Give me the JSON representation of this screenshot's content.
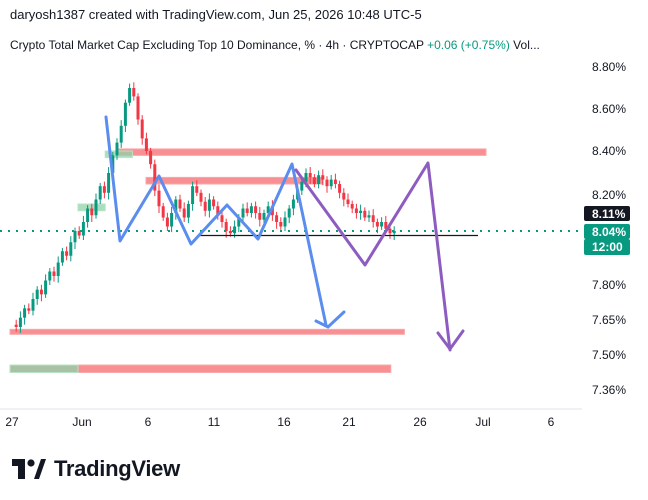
{
  "header": {
    "created_by": "daryosh1387 created with TradingView.com, Jun 25, 2026 10:48 UTC-5",
    "symbol_title": "Crypto Total Market Cap Excluding Top 10 Dominance, % · 4h · CRYPTOCAP",
    "change": "+0.06 (+0.75%)",
    "volume_label": "Vol..."
  },
  "footer": {
    "brand": "TradingView"
  },
  "colors": {
    "up": "#089981",
    "down": "#f23645",
    "zone_red": "#f77c80",
    "zone_green": "#8fd3a8",
    "arrow_blue": "#5b8def",
    "arrow_purple": "#8e5cc0",
    "dotted_level": "#089981",
    "last_price_badge": "#131722",
    "current_badge": "#089981"
  },
  "chart_data": {
    "type": "candlestick",
    "y_axis": {
      "ticks": [
        "8.80%",
        "8.60%",
        "8.40%",
        "8.20%",
        "8.00%",
        "7.80%",
        "7.65%",
        "7.50%",
        "7.36%"
      ],
      "scale": "nonlinear"
    },
    "x_axis": {
      "ticks": [
        "27",
        "Jun",
        "6",
        "11",
        "16",
        "21",
        "26",
        "Jul",
        "6"
      ]
    },
    "price_badges": [
      {
        "value": "8.11%",
        "kind": "last"
      },
      {
        "value": "8.04%",
        "kind": "current"
      },
      {
        "value": "12:00",
        "kind": "countdown"
      }
    ],
    "horizontal_levels": [
      {
        "value": 8.04,
        "style": "dotted"
      },
      {
        "value": 8.02,
        "style": "solid"
      }
    ],
    "zones": [
      {
        "type": "supply",
        "low": 8.38,
        "high": 8.41,
        "start": "Jun 4",
        "end": "Jul 1"
      },
      {
        "type": "supply",
        "low": 8.25,
        "high": 8.28,
        "start": "Jun 6",
        "end": "Jun 19"
      },
      {
        "type": "supply",
        "low": 7.59,
        "high": 7.61,
        "start": "May 27",
        "end": "Jun 25"
      },
      {
        "type": "supply",
        "low": 7.43,
        "high": 7.46,
        "start": "May 27",
        "end": "Jun 24"
      },
      {
        "type": "demand",
        "low": 8.37,
        "high": 8.4,
        "start": "Jun 3",
        "end": "Jun 5"
      },
      {
        "type": "demand",
        "low": 8.13,
        "high": 8.16,
        "start": "Jun 1",
        "end": "Jun 3"
      },
      {
        "type": "demand",
        "low": 7.43,
        "high": 7.46,
        "start": "May 27",
        "end": "Jun 1"
      }
    ],
    "projections": [
      {
        "color": "blue",
        "path": "zigzag down toward 7.65%"
      },
      {
        "color": "purple",
        "path": "rally to ~8.33% then drop toward 7.52%"
      }
    ]
  }
}
